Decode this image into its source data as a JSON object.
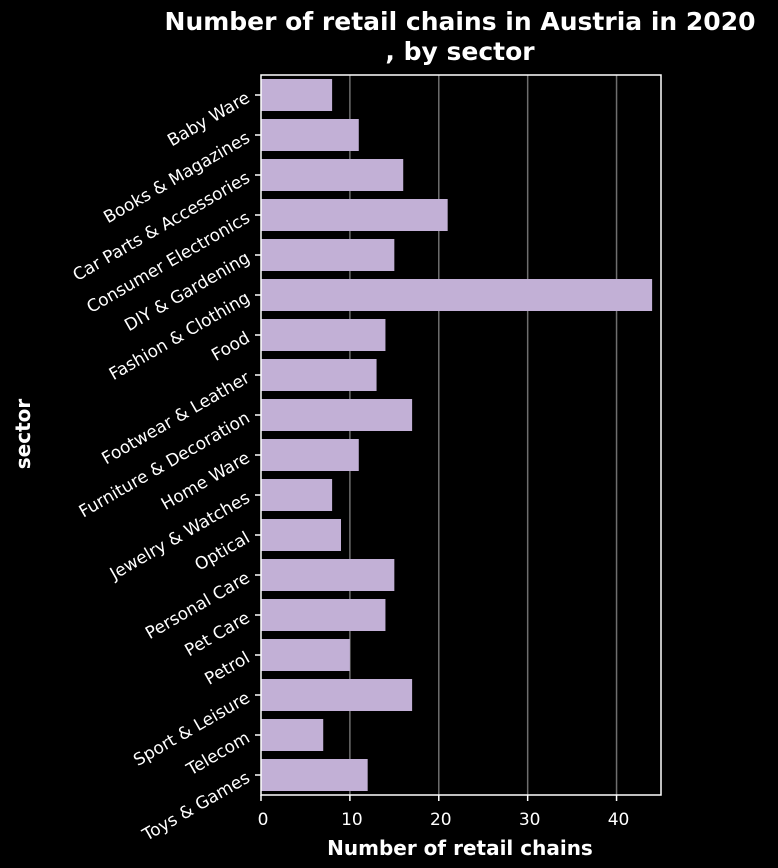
{
  "chart_data": {
    "type": "bar",
    "orientation": "horizontal",
    "title_line1": "Number of retail chains in Austria in 2020",
    "title_line2": ", by sector",
    "xlabel": "Number of retail chains",
    "ylabel": "sector",
    "xlim": [
      0,
      45
    ],
    "xticks": [
      0,
      10,
      20,
      30,
      40
    ],
    "grid": true,
    "categories": [
      "Baby Ware",
      "Books & Magazines",
      "Car Parts & Accessories",
      "Consumer Electronics",
      "DIY & Gardening",
      "Fashion & Clothing",
      "Food",
      "Footwear & Leather",
      "Furniture & Decoration",
      "Home Ware",
      "Jewelry & Watches",
      "Optical",
      "Personal Care",
      "Pet Care",
      "Petrol",
      "Sport & Leisure",
      "Telecom",
      "Toys & Games"
    ],
    "values": [
      8,
      11,
      16,
      21,
      15,
      44,
      14,
      13,
      17,
      11,
      8,
      9,
      15,
      14,
      10,
      17,
      7,
      12
    ],
    "colors": {
      "background": "#000000",
      "bar": "#c2b0d6",
      "grid": "#6e6e6e",
      "axis": "#ffffff",
      "text": "#ffffff"
    }
  }
}
